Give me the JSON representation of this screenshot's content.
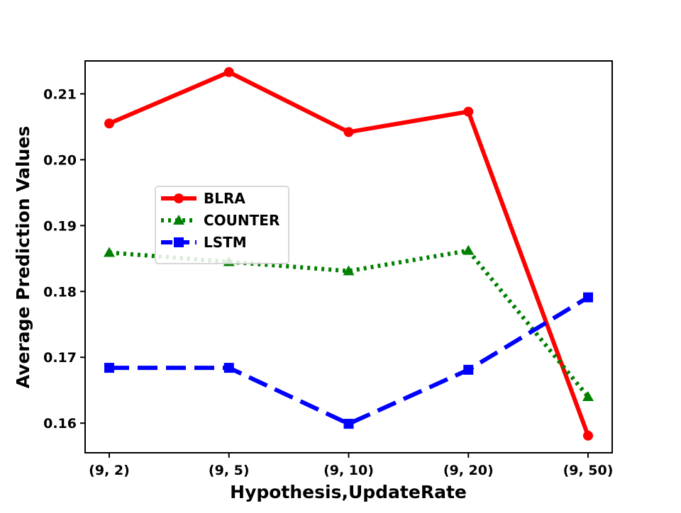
{
  "chart_data": {
    "type": "line",
    "title": "",
    "xlabel": "Hypothesis,UpdateRate",
    "ylabel": "Average Prediction Values",
    "categories": [
      "(9, 2)",
      "(9, 5)",
      "(9, 10)",
      "(9, 20)",
      "(9, 50)"
    ],
    "ylim": [
      0.1555,
      0.215
    ],
    "yticks": [
      0.16,
      0.17,
      0.18,
      0.19,
      0.2,
      0.21
    ],
    "ytick_labels": [
      "0.16",
      "0.17",
      "0.18",
      "0.19",
      "0.20",
      "0.21"
    ],
    "grid": false,
    "legend_position": "center-left",
    "series": [
      {
        "name": "BLRA",
        "values": [
          0.2055,
          0.2133,
          0.2042,
          0.2073,
          0.1581
        ],
        "color": "#ff0000",
        "marker": "circle",
        "line_style": "solid"
      },
      {
        "name": "COUNTER",
        "values": [
          0.1859,
          0.1845,
          0.1831,
          0.1862,
          0.164
        ],
        "color": "#008000",
        "marker": "triangle",
        "line_style": "dotted"
      },
      {
        "name": "LSTM",
        "values": [
          0.1684,
          0.1684,
          0.1599,
          0.1681,
          0.1791
        ],
        "color": "#0000ff",
        "marker": "square",
        "line_style": "dashed"
      }
    ]
  }
}
